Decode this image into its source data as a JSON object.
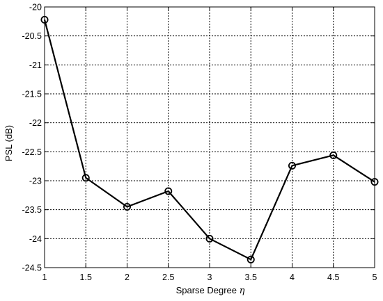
{
  "chart_data": {
    "type": "line",
    "title": "",
    "xlabel": "Sparse Degree",
    "xlabel_symbol": "η",
    "ylabel": "PSL (dB)",
    "xlim": [
      1,
      5
    ],
    "ylim": [
      -24.5,
      -20
    ],
    "x_ticks": [
      "1",
      "1.5",
      "2",
      "2.5",
      "3",
      "3.5",
      "4",
      "4.5",
      "5"
    ],
    "y_ticks": [
      "-20",
      "-20.5",
      "-21",
      "-21.5",
      "-22",
      "-22.5",
      "-23",
      "-23.5",
      "-24",
      "-24.5"
    ],
    "grid": true,
    "marker": "circle",
    "line_color": "#000000",
    "series": [
      {
        "x": [
          1,
          1.5,
          2,
          2.5,
          3,
          3.5,
          4,
          4.5,
          5
        ],
        "y": [
          -20.22,
          -22.95,
          -23.45,
          -23.18,
          -24.0,
          -24.36,
          -22.74,
          -22.56,
          -23.02
        ]
      }
    ]
  }
}
